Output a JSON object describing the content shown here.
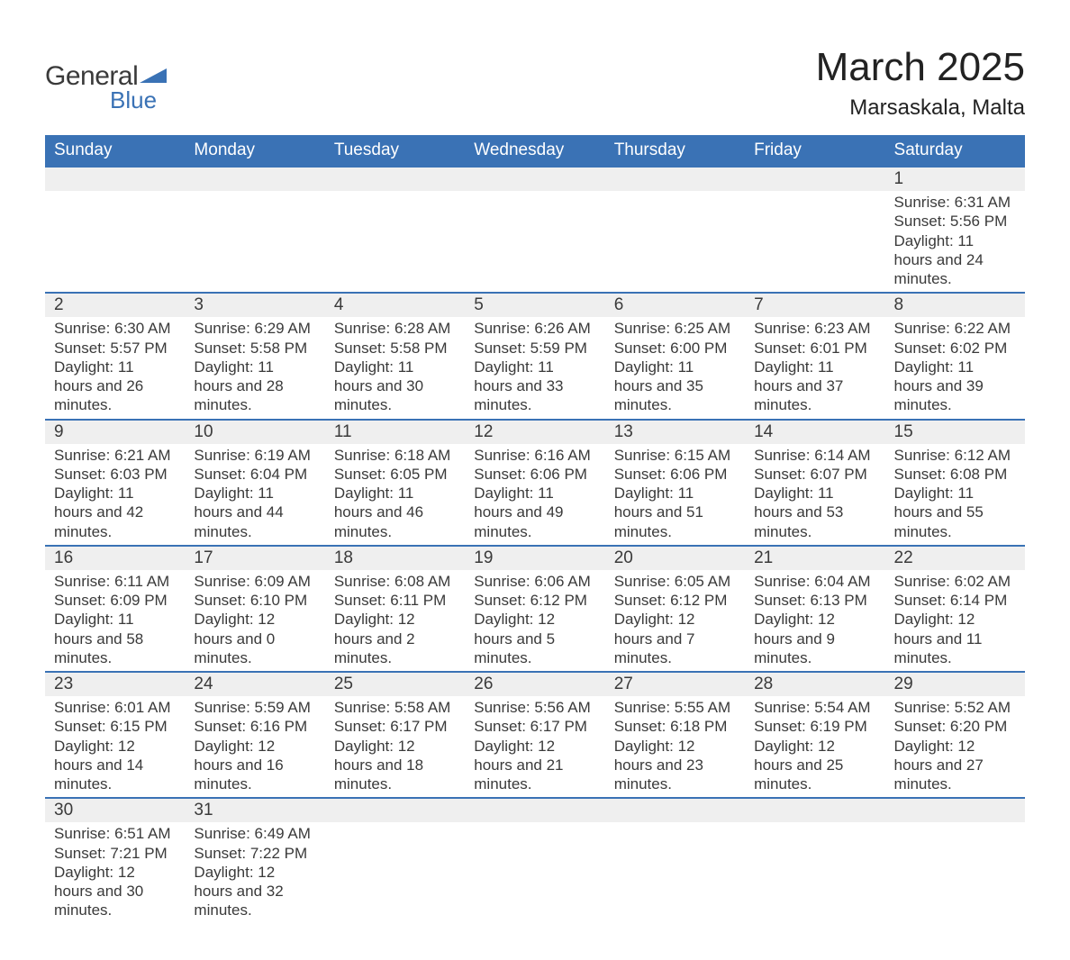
{
  "brand": {
    "general": "General",
    "blue": "Blue",
    "logo_color": "#3a72b5"
  },
  "title": "March 2025",
  "location": "Marsaskala, Malta",
  "colors": {
    "header_bg": "#3a72b5",
    "header_fg": "#ffffff",
    "daynum_bg": "#efefef",
    "row_border": "#3a72b5",
    "text": "#3a3a3a",
    "background": "#ffffff"
  },
  "typography": {
    "title_fontsize": 44,
    "location_fontsize": 24,
    "dow_fontsize": 19,
    "daynum_fontsize": 19,
    "detail_fontsize": 17
  },
  "layout": {
    "columns": 7,
    "rows": 6,
    "first_day_column_index": 6
  },
  "day_labels": [
    "Sunday",
    "Monday",
    "Tuesday",
    "Wednesday",
    "Thursday",
    "Friday",
    "Saturday"
  ],
  "field_labels": {
    "sunrise": "Sunrise:",
    "sunset": "Sunset:",
    "daylight": "Daylight:"
  },
  "days": [
    {
      "n": 1,
      "sunrise": "6:31 AM",
      "sunset": "5:56 PM",
      "daylight": "11 hours and 24 minutes."
    },
    {
      "n": 2,
      "sunrise": "6:30 AM",
      "sunset": "5:57 PM",
      "daylight": "11 hours and 26 minutes."
    },
    {
      "n": 3,
      "sunrise": "6:29 AM",
      "sunset": "5:58 PM",
      "daylight": "11 hours and 28 minutes."
    },
    {
      "n": 4,
      "sunrise": "6:28 AM",
      "sunset": "5:58 PM",
      "daylight": "11 hours and 30 minutes."
    },
    {
      "n": 5,
      "sunrise": "6:26 AM",
      "sunset": "5:59 PM",
      "daylight": "11 hours and 33 minutes."
    },
    {
      "n": 6,
      "sunrise": "6:25 AM",
      "sunset": "6:00 PM",
      "daylight": "11 hours and 35 minutes."
    },
    {
      "n": 7,
      "sunrise": "6:23 AM",
      "sunset": "6:01 PM",
      "daylight": "11 hours and 37 minutes."
    },
    {
      "n": 8,
      "sunrise": "6:22 AM",
      "sunset": "6:02 PM",
      "daylight": "11 hours and 39 minutes."
    },
    {
      "n": 9,
      "sunrise": "6:21 AM",
      "sunset": "6:03 PM",
      "daylight": "11 hours and 42 minutes."
    },
    {
      "n": 10,
      "sunrise": "6:19 AM",
      "sunset": "6:04 PM",
      "daylight": "11 hours and 44 minutes."
    },
    {
      "n": 11,
      "sunrise": "6:18 AM",
      "sunset": "6:05 PM",
      "daylight": "11 hours and 46 minutes."
    },
    {
      "n": 12,
      "sunrise": "6:16 AM",
      "sunset": "6:06 PM",
      "daylight": "11 hours and 49 minutes."
    },
    {
      "n": 13,
      "sunrise": "6:15 AM",
      "sunset": "6:06 PM",
      "daylight": "11 hours and 51 minutes."
    },
    {
      "n": 14,
      "sunrise": "6:14 AM",
      "sunset": "6:07 PM",
      "daylight": "11 hours and 53 minutes."
    },
    {
      "n": 15,
      "sunrise": "6:12 AM",
      "sunset": "6:08 PM",
      "daylight": "11 hours and 55 minutes."
    },
    {
      "n": 16,
      "sunrise": "6:11 AM",
      "sunset": "6:09 PM",
      "daylight": "11 hours and 58 minutes."
    },
    {
      "n": 17,
      "sunrise": "6:09 AM",
      "sunset": "6:10 PM",
      "daylight": "12 hours and 0 minutes."
    },
    {
      "n": 18,
      "sunrise": "6:08 AM",
      "sunset": "6:11 PM",
      "daylight": "12 hours and 2 minutes."
    },
    {
      "n": 19,
      "sunrise": "6:06 AM",
      "sunset": "6:12 PM",
      "daylight": "12 hours and 5 minutes."
    },
    {
      "n": 20,
      "sunrise": "6:05 AM",
      "sunset": "6:12 PM",
      "daylight": "12 hours and 7 minutes."
    },
    {
      "n": 21,
      "sunrise": "6:04 AM",
      "sunset": "6:13 PM",
      "daylight": "12 hours and 9 minutes."
    },
    {
      "n": 22,
      "sunrise": "6:02 AM",
      "sunset": "6:14 PM",
      "daylight": "12 hours and 11 minutes."
    },
    {
      "n": 23,
      "sunrise": "6:01 AM",
      "sunset": "6:15 PM",
      "daylight": "12 hours and 14 minutes."
    },
    {
      "n": 24,
      "sunrise": "5:59 AM",
      "sunset": "6:16 PM",
      "daylight": "12 hours and 16 minutes."
    },
    {
      "n": 25,
      "sunrise": "5:58 AM",
      "sunset": "6:17 PM",
      "daylight": "12 hours and 18 minutes."
    },
    {
      "n": 26,
      "sunrise": "5:56 AM",
      "sunset": "6:17 PM",
      "daylight": "12 hours and 21 minutes."
    },
    {
      "n": 27,
      "sunrise": "5:55 AM",
      "sunset": "6:18 PM",
      "daylight": "12 hours and 23 minutes."
    },
    {
      "n": 28,
      "sunrise": "5:54 AM",
      "sunset": "6:19 PM",
      "daylight": "12 hours and 25 minutes."
    },
    {
      "n": 29,
      "sunrise": "5:52 AM",
      "sunset": "6:20 PM",
      "daylight": "12 hours and 27 minutes."
    },
    {
      "n": 30,
      "sunrise": "6:51 AM",
      "sunset": "7:21 PM",
      "daylight": "12 hours and 30 minutes."
    },
    {
      "n": 31,
      "sunrise": "6:49 AM",
      "sunset": "7:22 PM",
      "daylight": "12 hours and 32 minutes."
    }
  ]
}
